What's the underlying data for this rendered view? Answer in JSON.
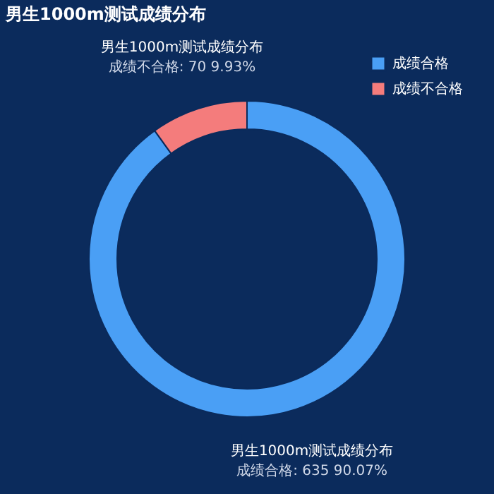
{
  "chart_data": {
    "type": "donut",
    "title": "男生1000m测试成绩分布",
    "categories": [
      "成绩合格",
      "成绩不合格"
    ],
    "values": [
      635,
      70
    ],
    "colors": [
      "#4a9ff5",
      "#f47c7c"
    ],
    "value_labels": [
      "成绩合格: 635 90.07%",
      "成绩不合格: 70 9.93%"
    ],
    "annotations": [
      "男生1000m测试成绩分布",
      "男生1000m测试成绩分布"
    ],
    "legend": "top right"
  }
}
